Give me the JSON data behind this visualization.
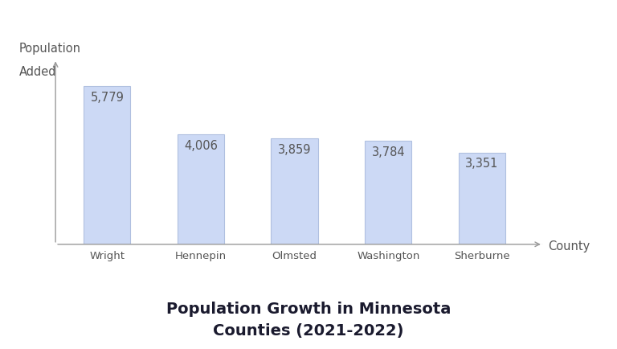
{
  "categories": [
    "Wright",
    "Hennepin",
    "Olmsted",
    "Washington",
    "Sherburne"
  ],
  "values": [
    5779,
    4006,
    3859,
    3784,
    3351
  ],
  "labels": [
    "5,779",
    "4,006",
    "3,859",
    "3,784",
    "3,351"
  ],
  "bar_color": "#ccd9f5",
  "bar_edge_color": "#b0c0e0",
  "title_line1": "Population Growth in Minnesota",
  "title_line2": "Counties (2021-2022)",
  "ylabel_line1": "Population",
  "ylabel_line2": "Added",
  "xlabel_arrow": "County",
  "background_color": "#ffffff",
  "bar_width": 0.5,
  "ylim": [
    0,
    7000
  ],
  "title_fontsize": 14,
  "label_fontsize": 10.5,
  "tick_fontsize": 9.5,
  "axis_label_fontsize": 10.5,
  "text_color": "#555555",
  "title_color": "#1a1a2e",
  "arrow_color": "#999999"
}
